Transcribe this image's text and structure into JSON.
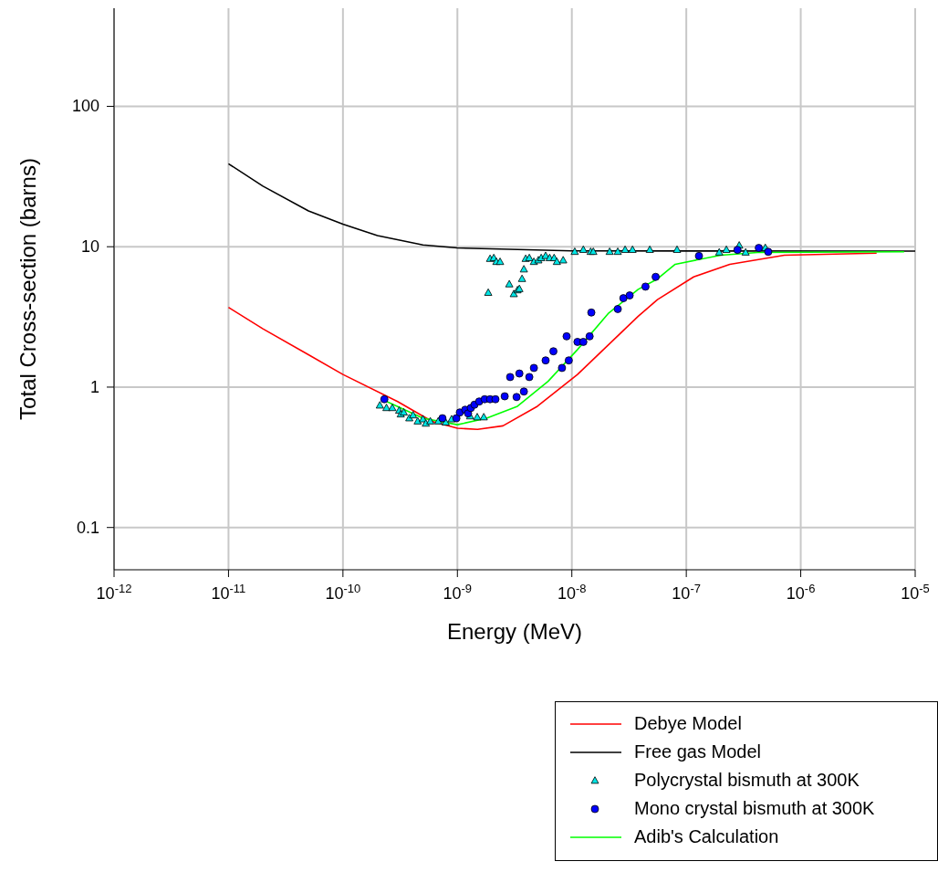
{
  "chart_data": {
    "type": "line",
    "xlabel": "Energy (MeV)",
    "ylabel": "Total Cross-section (barns)",
    "log": "xy",
    "grid": true,
    "legend": "bottom right",
    "xlim": [
      1e-12,
      1e-05
    ],
    "xticks": [
      {
        "value": 1e-12,
        "label": "10$^{-12}$"
      },
      {
        "value": 1e-11,
        "label": "10$^{-11}$"
      },
      {
        "value": 1e-10,
        "label": "10$^{-10}$"
      },
      {
        "value": 1e-09,
        "label": "10$^{-9}$"
      },
      {
        "value": 1e-08,
        "label": "10$^{-8}$"
      },
      {
        "value": 1e-07,
        "label": "10$^{-7}$"
      },
      {
        "value": 1e-06,
        "label": "10$^{-6}$"
      },
      {
        "value": 1e-05,
        "label": "10$^{-5}$"
      }
    ],
    "ylim": [
      0.05,
      500
    ],
    "yticks": [
      0.1,
      1,
      10,
      100
    ],
    "series": [
      {
        "name": "Debye Model",
        "color": "#ff0000",
        "marker": "none",
        "x": [
          1e-11,
          2e-11,
          5e-11,
          1e-10,
          3e-10,
          6e-10,
          1e-09,
          1.5e-09,
          2.5e-09,
          5e-09,
          1.12e-08,
          3.8e-08,
          5.6e-08,
          1.16e-07,
          2.4e-07,
          7.2e-07,
          4.6e-06
        ],
        "values": [
          3.7,
          2.6,
          1.7,
          1.23,
          0.79,
          0.57,
          0.51,
          0.5,
          0.53,
          0.73,
          1.23,
          3.2,
          4.2,
          6.1,
          7.5,
          8.7,
          9.0
        ]
      },
      {
        "name": "Free gas Model",
        "color": "#000000",
        "marker": "none",
        "x": [
          1e-11,
          2e-11,
          5e-11,
          1e-10,
          2e-10,
          5e-10,
          1e-09,
          1e-08,
          1e-05
        ],
        "values": [
          39,
          27,
          18,
          14.5,
          12,
          10.3,
          9.8,
          9.35,
          9.3
        ]
      },
      {
        "name": "Polycrystal bismuth at 300K",
        "type": "scatter",
        "color": "#00e5e5",
        "marker": "triangle",
        "x": [
          2.1e-10,
          2.4e-10,
          2.7e-10,
          3.1e-10,
          3.2e-10,
          3.4e-10,
          3.8e-10,
          4.1e-10,
          4.5e-10,
          5e-10,
          5.3e-10,
          5.8e-10,
          6.8e-10,
          7.9e-10,
          8.9e-10,
          1.29e-09,
          1.49e-09,
          1.7e-09,
          1.86e-09,
          1.93e-09,
          2.08e-09,
          2.19e-09,
          2.36e-09,
          2.84e-09,
          3.11e-09,
          3.35e-09,
          3.48e-09,
          3.67e-09,
          3.81e-09,
          3.95e-09,
          4.25e-09,
          4.66e-09,
          5.1e-09,
          5.4e-09,
          5.9e-09,
          6.4e-09,
          7e-09,
          7.4e-09,
          8.4e-09,
          1.06e-08,
          1.26e-08,
          1.46e-08,
          1.54e-08,
          2.14e-08,
          2.52e-08,
          2.92e-08,
          3.39e-08,
          4.8e-08,
          8.3e-08,
          1.94e-07,
          2.24e-07,
          2.9e-07,
          3.3e-07,
          4.9e-07
        ],
        "values": [
          0.74,
          0.71,
          0.71,
          0.68,
          0.64,
          0.66,
          0.6,
          0.63,
          0.57,
          0.59,
          0.55,
          0.57,
          0.57,
          0.56,
          0.59,
          0.62,
          0.61,
          0.61,
          4.7,
          8.2,
          8.3,
          7.8,
          7.8,
          5.4,
          4.6,
          4.9,
          5.0,
          5.9,
          6.9,
          8.2,
          8.3,
          7.8,
          8.0,
          8.3,
          8.6,
          8.3,
          8.3,
          7.8,
          8.0,
          9.2,
          9.5,
          9.2,
          9.2,
          9.2,
          9.2,
          9.5,
          9.5,
          9.5,
          9.5,
          9.1,
          9.5,
          10.2,
          9.1,
          9.8
        ]
      },
      {
        "name": "Mono crystal bismuth at 300K",
        "type": "scatter",
        "color": "#0000ff",
        "marker": "circle",
        "x": [
          2.3e-10,
          7.4e-10,
          9.8e-10,
          1.05e-09,
          1.17e-09,
          1.24e-09,
          1.31e-09,
          1.41e-09,
          1.55e-09,
          1.73e-09,
          1.93e-09,
          2.15e-09,
          2.59e-09,
          2.89e-09,
          3.29e-09,
          3.48e-09,
          3.81e-09,
          4.25e-09,
          4.66e-09,
          5.9e-09,
          6.9e-09,
          8.2e-09,
          9e-09,
          9.4e-09,
          1.12e-08,
          1.26e-08,
          1.43e-08,
          1.48e-08,
          2.52e-08,
          2.82e-08,
          3.2e-08,
          4.4e-08,
          5.4e-08,
          1.29e-07,
          2.8e-07,
          4.3e-07,
          5.2e-07
        ],
        "values": [
          0.82,
          0.6,
          0.6,
          0.66,
          0.69,
          0.65,
          0.71,
          0.75,
          0.79,
          0.82,
          0.82,
          0.82,
          0.86,
          1.18,
          0.85,
          1.25,
          0.93,
          1.18,
          1.37,
          1.55,
          1.8,
          1.37,
          2.3,
          1.55,
          2.1,
          2.1,
          2.3,
          3.4,
          3.6,
          4.3,
          4.5,
          5.2,
          6.1,
          8.6,
          9.5,
          9.8,
          9.2
        ]
      },
      {
        "name": "Adib's Calculation",
        "color": "#00ff00",
        "marker": "none",
        "x": [
          2.25e-10,
          5e-10,
          1e-09,
          1.8e-09,
          3.35e-09,
          6.2e-09,
          1.12e-08,
          2.1e-08,
          3.8e-08,
          5.6e-08,
          8e-08,
          2e-07,
          4.2e-07,
          8e-06
        ],
        "values": [
          0.81,
          0.6,
          0.54,
          0.6,
          0.73,
          1.1,
          1.85,
          3.37,
          4.97,
          5.9,
          7.5,
          8.7,
          9.1,
          9.2
        ]
      }
    ]
  }
}
